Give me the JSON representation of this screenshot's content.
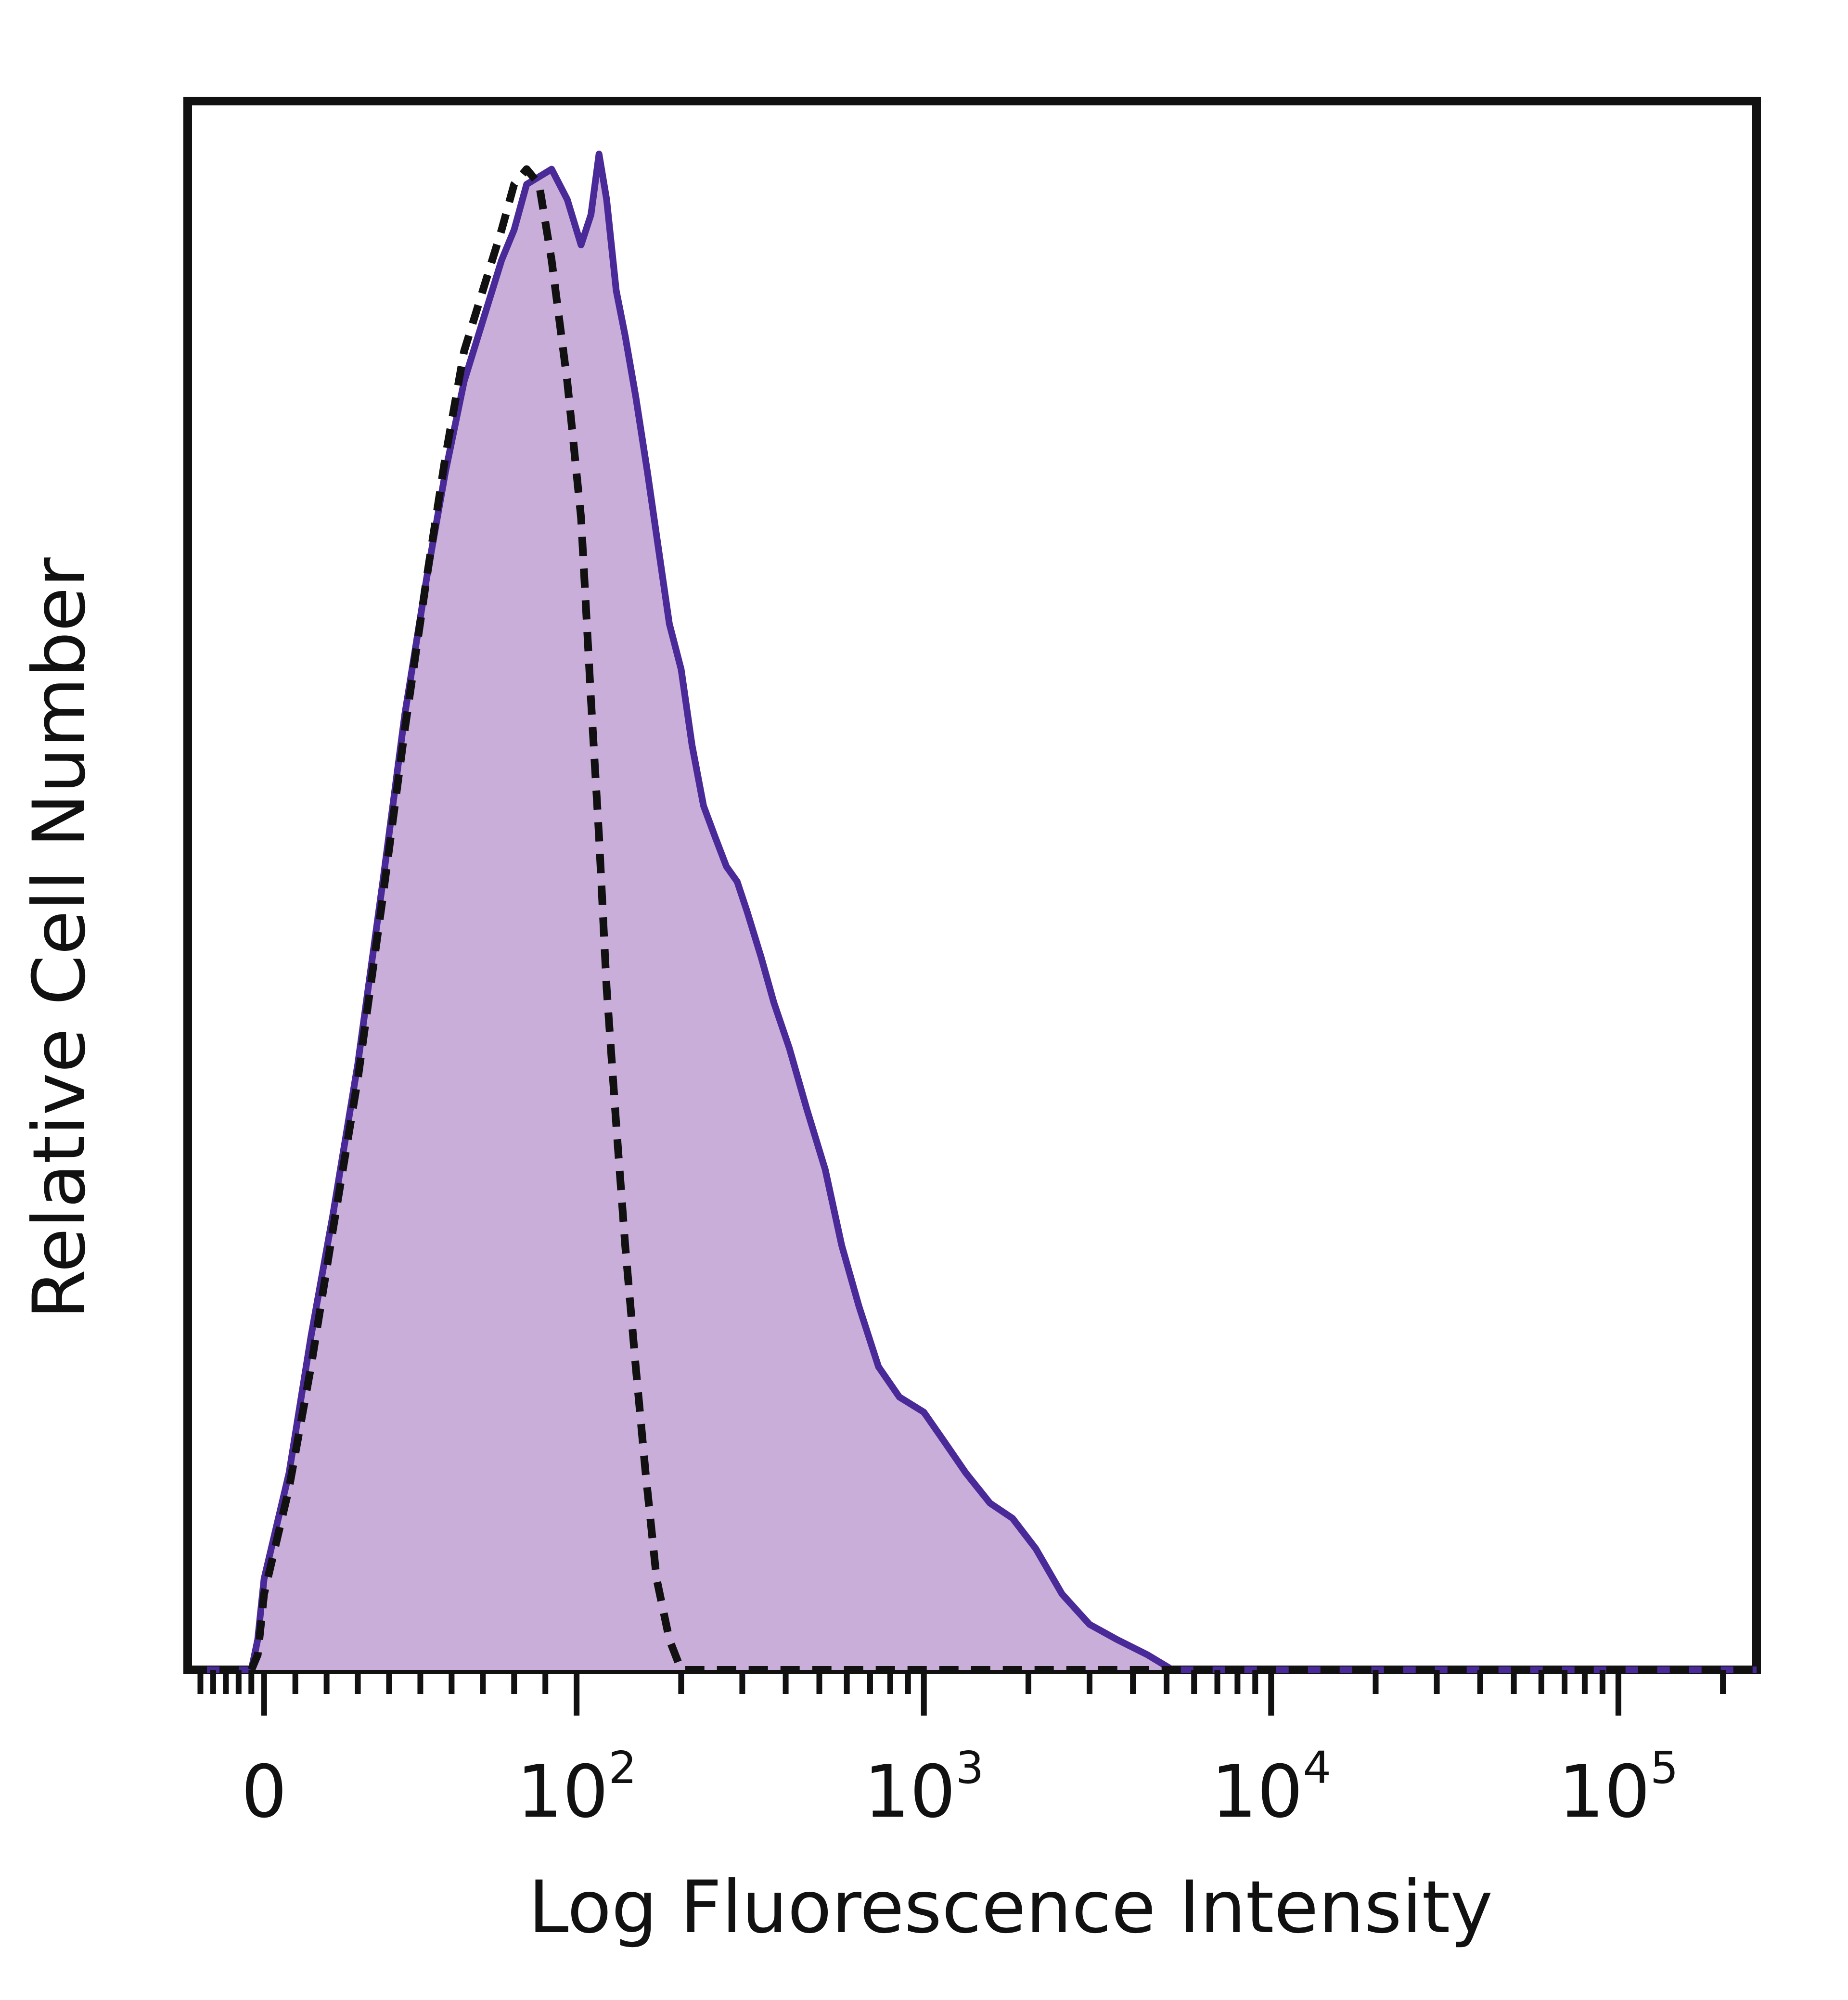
{
  "chart_data": {
    "type": "area",
    "xlabel": "Log Fluorescence Intensity",
    "ylabel": "Relative Cell Number",
    "x_scale": "biexponential",
    "xlim": [
      -60,
      250000
    ],
    "ylim": [
      0,
      1.0
    ],
    "grid": false,
    "legend": "none",
    "x_ticks": [
      {
        "value": 0,
        "base": "0",
        "exp": ""
      },
      {
        "value": 100,
        "base": "10",
        "exp": "2"
      },
      {
        "value": 1000,
        "base": "10",
        "exp": "3"
      },
      {
        "value": 10000,
        "base": "10",
        "exp": "4"
      },
      {
        "value": 100000,
        "base": "10",
        "exp": "5"
      }
    ],
    "series": [
      {
        "style": "filled-solid",
        "color": "#4a2a98",
        "fill": "#c8aed8",
        "points": [
          [
            -60,
            0.0
          ],
          [
            -10,
            0.0
          ],
          [
            -5,
            0.02
          ],
          [
            0,
            0.06
          ],
          [
            8,
            0.13
          ],
          [
            15,
            0.22
          ],
          [
            22,
            0.3
          ],
          [
            30,
            0.4
          ],
          [
            38,
            0.52
          ],
          [
            45,
            0.63
          ],
          [
            52,
            0.72
          ],
          [
            58,
            0.79
          ],
          [
            64,
            0.85
          ],
          [
            70,
            0.89
          ],
          [
            76,
            0.93
          ],
          [
            80,
            0.95
          ],
          [
            84,
            0.98
          ],
          [
            88,
            0.985
          ],
          [
            92,
            0.99
          ],
          [
            97,
            0.97
          ],
          [
            103,
            0.94
          ],
          [
            110,
            0.96
          ],
          [
            116,
            1.0
          ],
          [
            122,
            0.97
          ],
          [
            130,
            0.91
          ],
          [
            138,
            0.88
          ],
          [
            148,
            0.84
          ],
          [
            160,
            0.79
          ],
          [
            172,
            0.74
          ],
          [
            185,
            0.69
          ],
          [
            200,
            0.66
          ],
          [
            215,
            0.61
          ],
          [
            232,
            0.57
          ],
          [
            250,
            0.55
          ],
          [
            270,
            0.53
          ],
          [
            290,
            0.52
          ],
          [
            310,
            0.5
          ],
          [
            340,
            0.47
          ],
          [
            370,
            0.44
          ],
          [
            410,
            0.41
          ],
          [
            460,
            0.37
          ],
          [
            520,
            0.33
          ],
          [
            580,
            0.28
          ],
          [
            650,
            0.24
          ],
          [
            740,
            0.2
          ],
          [
            850,
            0.18
          ],
          [
            1000,
            0.17
          ],
          [
            1150,
            0.15
          ],
          [
            1320,
            0.13
          ],
          [
            1550,
            0.11
          ],
          [
            1800,
            0.1
          ],
          [
            2100,
            0.08
          ],
          [
            2500,
            0.05
          ],
          [
            3000,
            0.03
          ],
          [
            3600,
            0.02
          ],
          [
            4400,
            0.01
          ],
          [
            5200,
            0.0
          ],
          [
            10000,
            0.0
          ],
          [
            100000,
            0.0
          ],
          [
            250000,
            0.0
          ]
        ]
      },
      {
        "style": "dashed-outline",
        "color": "#111111",
        "points": [
          [
            -60,
            0.0
          ],
          [
            -10,
            0.0
          ],
          [
            -5,
            0.01
          ],
          [
            0,
            0.05
          ],
          [
            8,
            0.12
          ],
          [
            15,
            0.2
          ],
          [
            22,
            0.29
          ],
          [
            30,
            0.39
          ],
          [
            38,
            0.51
          ],
          [
            45,
            0.62
          ],
          [
            52,
            0.72
          ],
          [
            58,
            0.8
          ],
          [
            64,
            0.87
          ],
          [
            70,
            0.91
          ],
          [
            76,
            0.95
          ],
          [
            80,
            0.98
          ],
          [
            84,
            0.99
          ],
          [
            88,
            0.98
          ],
          [
            92,
            0.93
          ],
          [
            97,
            0.85
          ],
          [
            103,
            0.76
          ],
          [
            110,
            0.64
          ],
          [
            116,
            0.55
          ],
          [
            122,
            0.45
          ],
          [
            130,
            0.36
          ],
          [
            138,
            0.28
          ],
          [
            148,
            0.2
          ],
          [
            158,
            0.13
          ],
          [
            170,
            0.06
          ],
          [
            185,
            0.02
          ],
          [
            200,
            0.0
          ],
          [
            10000,
            0.0
          ],
          [
            100000,
            0.0
          ],
          [
            250000,
            0.0
          ]
        ]
      }
    ]
  }
}
